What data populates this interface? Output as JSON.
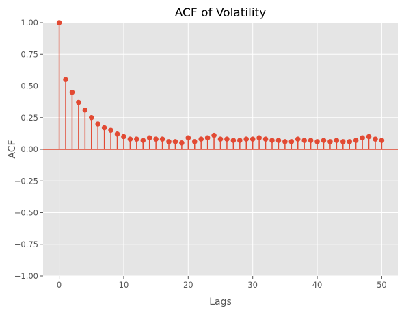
{
  "chart_data": {
    "type": "stem",
    "title": "ACF of Volatility",
    "xlabel": "Lags",
    "ylabel": "ACF",
    "xlim": [
      -2.5,
      52.5
    ],
    "ylim": [
      -1.0,
      1.0
    ],
    "xticks": [
      0,
      10,
      20,
      30,
      40,
      50
    ],
    "yticks": [
      -1.0,
      -0.75,
      -0.5,
      -0.25,
      0.0,
      0.25,
      0.5,
      0.75,
      1.0
    ],
    "xtick_labels": [
      "0",
      "10",
      "20",
      "30",
      "40",
      "50"
    ],
    "ytick_labels": [
      "−1.00",
      "−0.75",
      "−0.50",
      "−0.25",
      "0.00",
      "0.25",
      "0.50",
      "0.75",
      "1.00"
    ],
    "grid": true,
    "series": [
      {
        "lags": [
          0,
          1,
          2,
          3,
          4,
          5,
          6,
          7,
          8,
          9,
          10,
          11,
          12,
          13,
          14,
          15,
          16,
          17,
          18,
          19,
          20,
          21,
          22,
          23,
          24,
          25,
          26,
          27,
          28,
          29,
          30,
          31,
          32,
          33,
          34,
          35,
          36,
          37,
          38,
          39,
          40,
          41,
          42,
          43,
          44,
          45,
          46,
          47,
          48,
          49,
          50
        ],
        "values": [
          1.0,
          0.55,
          0.45,
          0.37,
          0.31,
          0.25,
          0.2,
          0.17,
          0.15,
          0.12,
          0.1,
          0.08,
          0.08,
          0.07,
          0.09,
          0.08,
          0.08,
          0.06,
          0.06,
          0.05,
          0.09,
          0.06,
          0.08,
          0.09,
          0.11,
          0.08,
          0.08,
          0.07,
          0.07,
          0.08,
          0.08,
          0.09,
          0.08,
          0.07,
          0.07,
          0.06,
          0.06,
          0.08,
          0.07,
          0.07,
          0.06,
          0.07,
          0.06,
          0.07,
          0.06,
          0.06,
          0.07,
          0.09,
          0.1,
          0.08,
          0.07
        ]
      }
    ],
    "colors": {
      "stem": "#e24a33",
      "baseline": "#e24a33",
      "plot_bg": "#e5e5e5",
      "grid": "#ffffff",
      "tick": "#555555"
    }
  }
}
